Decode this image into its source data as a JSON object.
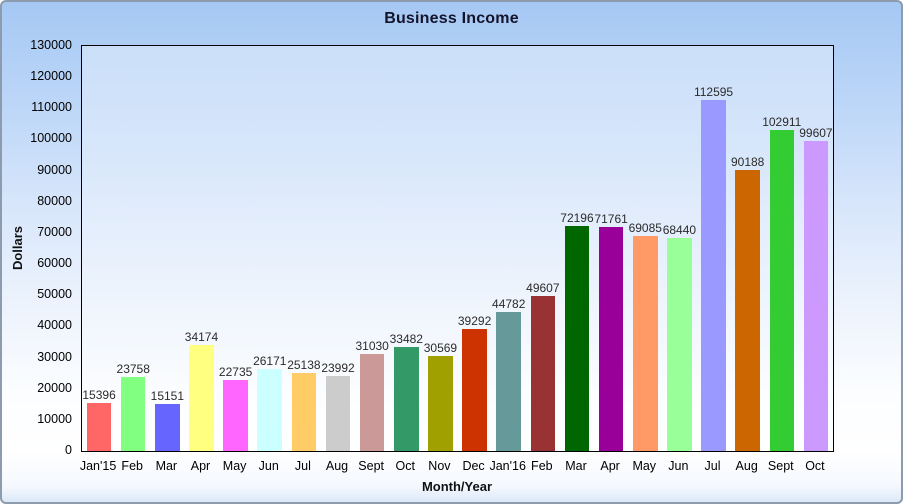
{
  "chart_data": {
    "type": "bar",
    "title": "Business Income",
    "xlabel": "Month/Year",
    "ylabel": "Dollars",
    "ylim": [
      0,
      130000
    ],
    "ytick_step": 10000,
    "grid": false,
    "legend": "none",
    "value_labels_shown": true,
    "categories": [
      "Jan'15",
      "Feb",
      "Mar",
      "Apr",
      "May",
      "Jun",
      "Jul",
      "Aug",
      "Sept",
      "Oct",
      "Nov",
      "Dec",
      "Jan'16",
      "Feb",
      "Mar",
      "Apr",
      "May",
      "Jun",
      "Jul",
      "Aug",
      "Sept",
      "Oct"
    ],
    "values": [
      15396,
      23758,
      15151,
      34174,
      22735,
      26171,
      25138,
      23992,
      31030,
      33482,
      30569,
      39292,
      44782,
      49607,
      72196,
      71761,
      69085,
      68440,
      112595,
      90188,
      102911,
      99607
    ],
    "bar_colors": [
      "#FF6666",
      "#80FF80",
      "#6666FF",
      "#FFFF80",
      "#FF66FF",
      "#CCFFFF",
      "#FFCC66",
      "#CCCCCC",
      "#CC9999",
      "#339966",
      "#A0A000",
      "#CC3300",
      "#669999",
      "#993333",
      "#006600",
      "#990099",
      "#FF9966",
      "#99FF99",
      "#9999FF",
      "#CC6600",
      "#33CC33",
      "#CC99FF"
    ]
  },
  "colors": {
    "background_top": "#A5C8F3",
    "background_bottom": "#FFFFFF",
    "canvas_border": "#8C9BAD",
    "plot_border": "#000000",
    "title_text": "#14142B",
    "axis_text": "#000000",
    "value_label_text": "#2B2B2B"
  }
}
